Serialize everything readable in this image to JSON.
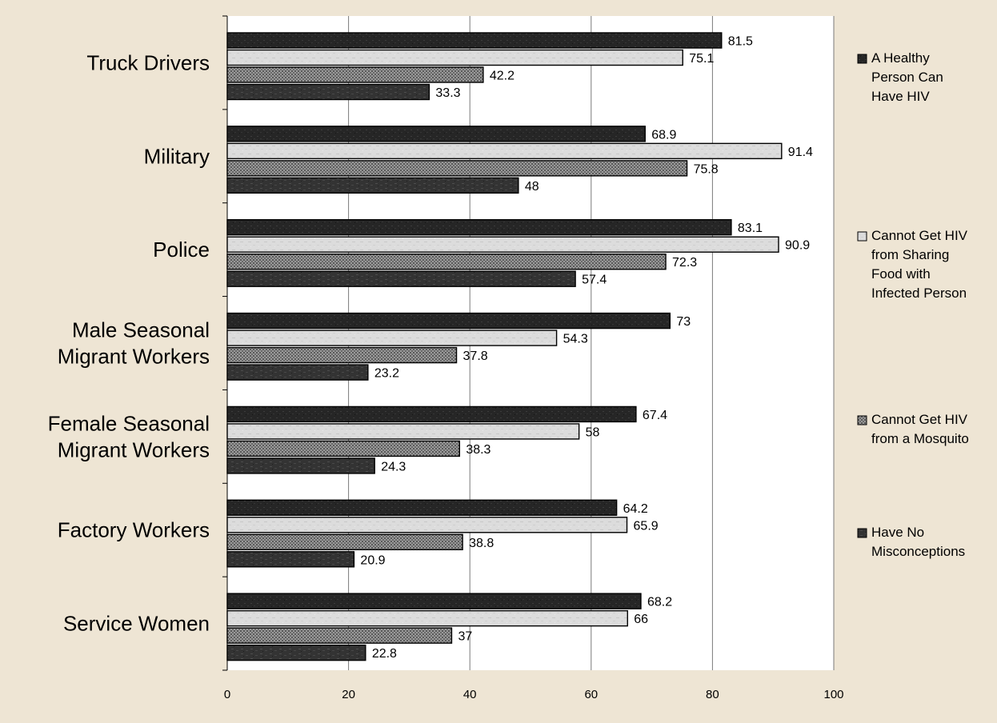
{
  "chart_data": {
    "type": "bar",
    "orientation": "horizontal",
    "categories": [
      "Truck Drivers",
      "Military",
      "Police",
      "Male Seasonal Migrant Workers",
      "Female Seasonal Migrant Workers",
      "Factory Workers",
      "Service Women"
    ],
    "category_lines": [
      [
        "Truck Drivers"
      ],
      [
        "Military"
      ],
      [
        "Police"
      ],
      [
        "Male Seasonal",
        "Migrant Workers"
      ],
      [
        "Female Seasonal",
        "Migrant Workers"
      ],
      [
        "Factory Workers"
      ],
      [
        "Service Women"
      ]
    ],
    "series": [
      {
        "name": "A Healthy Person Can Have HIV",
        "legend_lines": [
          "A Healthy",
          "Person Can",
          "Have HIV"
        ],
        "values": [
          81.5,
          68.9,
          83.1,
          73,
          67.4,
          64.2,
          68.2
        ],
        "color": "#2a2a2a",
        "pattern": "dark-mottled"
      },
      {
        "name": "Cannot Get HIV from Sharing Food with Infected Person",
        "legend_lines": [
          "Cannot Get HIV",
          "from Sharing",
          "Food with",
          "Infected Person"
        ],
        "values": [
          75.1,
          91.4,
          90.9,
          54.3,
          58,
          65.9,
          66
        ],
        "color": "#d8d8d8",
        "pattern": "light-marble"
      },
      {
        "name": "Cannot Get HIV from a Mosquito",
        "legend_lines": [
          "Cannot Get HIV",
          "from a Mosquito"
        ],
        "values": [
          42.2,
          75.8,
          72.3,
          37.8,
          38.3,
          38.8,
          37
        ],
        "color": "#8a8a8a",
        "pattern": "checkered"
      },
      {
        "name": "Have No Misconceptions",
        "legend_lines": [
          "Have No",
          "Misconceptions"
        ],
        "values": [
          33.3,
          48,
          57.4,
          23.2,
          24.3,
          20.9,
          22.8
        ],
        "color": "#3a3a3a",
        "pattern": "dark-textured"
      }
    ],
    "xlim": [
      0,
      100
    ],
    "xticks": [
      "0",
      "20",
      "40",
      "60",
      "80",
      "100"
    ],
    "grid": "vertical",
    "legend_position": "right"
  }
}
